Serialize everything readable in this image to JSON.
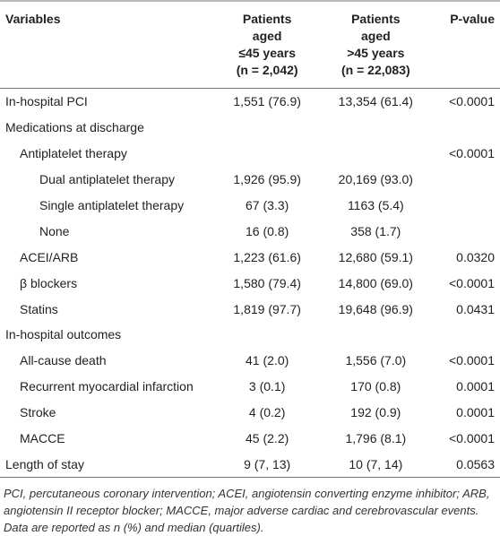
{
  "table": {
    "header": [
      [
        "Variables"
      ],
      [
        "Patients",
        "aged",
        "≤45 years",
        "(n = 2,042)"
      ],
      [
        "Patients",
        "aged",
        ">45 years",
        "(n = 22,083)"
      ],
      [
        "P-value"
      ]
    ],
    "rows": [
      [
        "In-hospital PCI",
        "1,551 (76.9)",
        "13,354 (61.4)",
        "<0.0001"
      ],
      [
        "Medications at discharge",
        null,
        null,
        null
      ],
      [
        "Antiplatelet therapy",
        null,
        null,
        "<0.0001"
      ],
      [
        "Dual antiplatelet therapy",
        "1,926 (95.9)",
        "20,169 (93.0)",
        null
      ],
      [
        "Single antiplatelet therapy",
        "67 (3.3)",
        "1163 (5.4)",
        null
      ],
      [
        "None",
        "16 (0.8)",
        "358 (1.7)",
        null
      ],
      [
        "ACEI/ARB",
        "1,223 (61.6)",
        "12,680 (59.1)",
        "0.0320"
      ],
      [
        "β blockers",
        "1,580 (79.4)",
        "14,800 (69.0)",
        "<0.0001"
      ],
      [
        "Statins",
        "1,819 (97.7)",
        "19,648 (96.9)",
        "0.0431"
      ],
      [
        "In-hospital outcomes",
        null,
        null,
        null
      ],
      [
        "All-cause death",
        "41 (2.0)",
        "1,556 (7.0)",
        "<0.0001"
      ],
      [
        "Recurrent myocardial infarction",
        "3 (0.1)",
        "170 (0.8)",
        "0.0001"
      ],
      [
        "Stroke",
        "4 (0.2)",
        "192 (0.9)",
        "0.0001"
      ],
      [
        "MACCE",
        "45 (2.2)",
        "1,796 (8.1)",
        "<0.0001"
      ],
      [
        "Length of stay",
        "9 (7, 13)",
        "10 (7, 14)",
        "0.0563"
      ]
    ]
  },
  "footnote": "PCI, percutaneous coronary intervention; ACEI, angiotensin converting enzyme inhibitor; ARB, angiotensin II receptor blocker; MACCE, major adverse cardiac and cerebrovascular events. Data are reported as n (%) and median (quartiles)."
}
